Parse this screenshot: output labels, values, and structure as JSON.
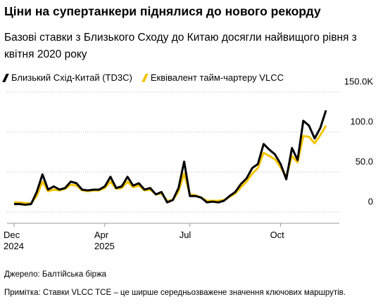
{
  "title": "Ціни на супертанкери піднялися до нового рекорду",
  "subtitle": "Базові ставки з Близького Сходу до Китаю досягли найвищого рівня з квітня 2020 року",
  "source": "Джерело: Балтійська біржа",
  "note": "Примітка: Ставки VLCC TCE – це ширше середньозважене значення ключових маршрутів.",
  "chart_data": {
    "type": "line",
    "categories": [
      "Dec 2024",
      null,
      null,
      null,
      null,
      null,
      null,
      null,
      null,
      null,
      null,
      null,
      null,
      null,
      null,
      null,
      "Apr 2025",
      null,
      null,
      null,
      null,
      null,
      null,
      null,
      null,
      null,
      null,
      null,
      null,
      null,
      null,
      "Jul",
      null,
      null,
      null,
      null,
      null,
      null,
      null,
      null,
      null,
      null,
      null,
      null,
      null,
      null,
      null,
      "Oct",
      null,
      null,
      null,
      null,
      null,
      null,
      null,
      null
    ],
    "series": [
      {
        "name": "Близький Схід-Китай (TD3C)",
        "color": "#000000",
        "values": [
          10,
          10,
          9,
          10,
          25,
          47,
          28,
          32,
          28,
          30,
          38,
          36,
          28,
          27,
          28,
          28,
          32,
          44,
          30,
          32,
          44,
          33,
          36,
          28,
          30,
          22,
          25,
          12,
          15,
          30,
          63,
          20,
          20,
          18,
          12,
          13,
          12,
          14,
          20,
          25,
          35,
          42,
          55,
          60,
          85,
          78,
          72,
          60,
          41,
          80,
          65,
          114,
          108,
          92,
          105,
          127
        ]
      },
      {
        "name": "Еквівалент тайм-чартеру VLCC",
        "color": "#f5c400",
        "values": [
          12,
          12,
          11,
          11,
          20,
          38,
          26,
          28,
          27,
          29,
          34,
          33,
          27,
          26,
          27,
          27,
          30,
          38,
          29,
          30,
          38,
          31,
          33,
          27,
          28,
          22,
          23,
          14,
          15,
          26,
          48,
          22,
          21,
          18,
          14,
          14,
          14,
          15,
          19,
          23,
          31,
          38,
          48,
          55,
          74,
          70,
          66,
          56,
          44,
          70,
          62,
          95,
          94,
          86,
          96,
          108
        ]
      }
    ],
    "ylim": [
      0,
      150
    ],
    "yticks": [
      0,
      {
        "value": 50,
        "label": "50.0"
      },
      {
        "value": 100,
        "label": "100.0"
      },
      {
        "value": 150,
        "label": "150.0K"
      }
    ],
    "grid": true
  }
}
